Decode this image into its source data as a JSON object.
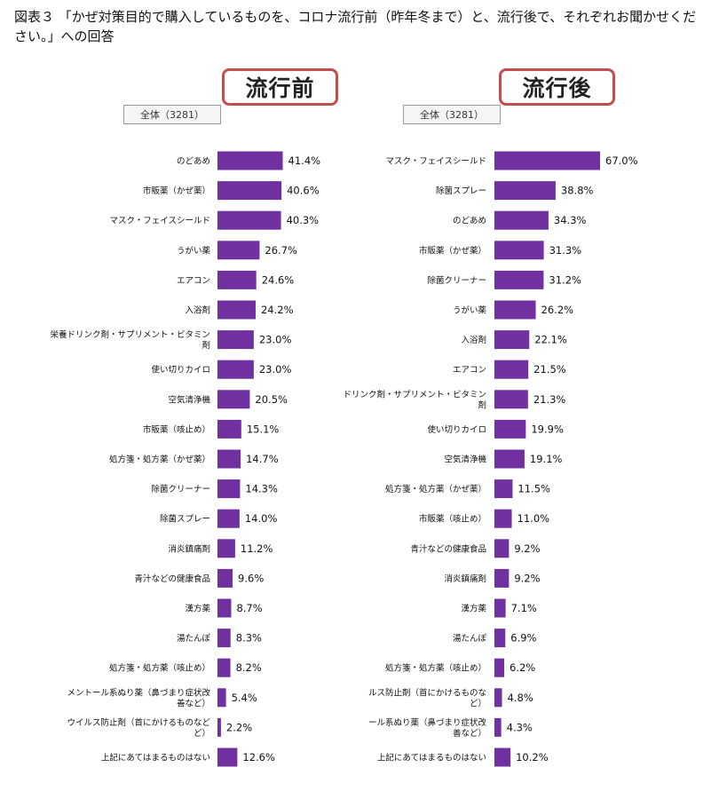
{
  "title": "図表３ 「かぜ対策目的で購入しているものを、コロナ流行前（昨年冬まで）と、流行後で、それぞれお聞かせください。」への回答",
  "colors": {
    "bar": "#7030a0",
    "header_border": "#c0504d",
    "value_text": "#111111",
    "label_text": "#111111"
  },
  "chart_data": [
    {
      "type": "bar",
      "orientation": "horizontal",
      "panel_title": "流行前",
      "sample_label": "全体（3281）",
      "unit": "%",
      "xlim": [
        0,
        67
      ],
      "grid": false,
      "categories": [
        "のどあめ",
        "市販薬（かぜ薬）",
        "マスク・フェイスシールド",
        "うがい薬",
        "エアコン",
        "入浴剤",
        "栄養ドリンク剤・サプリメント・ビタミン剤",
        "使い切りカイロ",
        "空気清浄機",
        "市販薬（咳止め）",
        "処方箋・処方薬（かぜ薬）",
        "除菌クリーナー",
        "除菌スプレー",
        "消炎鎮痛剤",
        "青汁などの健康食品",
        "漢方薬",
        "湯たんぽ",
        "処方箋・処方薬（咳止め）",
        "メントール系ぬり薬（鼻づまり症状改善など）",
        "ウイルス防止剤（首にかけるものなど）",
        "上記にあてはまるものはない"
      ],
      "label_lines": [
        [
          "のどあめ"
        ],
        [
          "市販薬（かぜ薬）"
        ],
        [
          "マスク・フェイスシールド"
        ],
        [
          "うがい薬"
        ],
        [
          "エアコン"
        ],
        [
          "入浴剤"
        ],
        [
          "栄養ドリンク剤・サプリメント・ビタミン",
          "剤"
        ],
        [
          "使い切りカイロ"
        ],
        [
          "空気清浄機"
        ],
        [
          "市販薬（咳止め）"
        ],
        [
          "処方箋・処方薬（かぜ薬）"
        ],
        [
          "除菌クリーナー"
        ],
        [
          "除菌スプレー"
        ],
        [
          "消炎鎮痛剤"
        ],
        [
          "青汁などの健康食品"
        ],
        [
          "漢方薬"
        ],
        [
          "湯たんぽ"
        ],
        [
          "処方箋・処方薬（咳止め）"
        ],
        [
          "メントール系ぬり薬（鼻づまり症状改",
          "善など）"
        ],
        [
          "ウイルス防止剤（首にかけるものなど",
          "ど）"
        ],
        [
          "上記にあてはまるものはない"
        ]
      ],
      "values": [
        41.4,
        40.6,
        40.3,
        26.7,
        24.6,
        24.2,
        23.0,
        23.0,
        20.5,
        15.1,
        14.7,
        14.3,
        14.0,
        11.2,
        9.6,
        8.7,
        8.3,
        8.2,
        5.4,
        2.2,
        12.6
      ],
      "value_labels": [
        "41.4%",
        "40.6%",
        "40.3%",
        "26.7%",
        "24.6%",
        "24.2%",
        "23.0%",
        "23.0%",
        "20.5%",
        "15.1%",
        "14.7%",
        "14.3%",
        "14.0%",
        "11.2%",
        "9.6%",
        "8.7%",
        "8.3%",
        "8.2%",
        "5.4%",
        "2.2%",
        "12.6%"
      ]
    },
    {
      "type": "bar",
      "orientation": "horizontal",
      "panel_title": "流行後",
      "sample_label": "全体（3281）",
      "unit": "%",
      "xlim": [
        0,
        67
      ],
      "grid": false,
      "categories": [
        "マスク・フェイスシールド",
        "除菌スプレー",
        "のどあめ",
        "市販薬（かぜ薬）",
        "除菌クリーナー",
        "うがい薬",
        "入浴剤",
        "エアコン",
        "ドリンク剤・サプリメント・ビタミン剤",
        "使い切りカイロ",
        "空気清浄機",
        "処方箋・処方薬（かぜ薬）",
        "市販薬（咳止め）",
        "青汁などの健康食品",
        "消炎鎮痛剤",
        "漢方薬",
        "湯たんぽ",
        "処方箋・処方薬（咳止め）",
        "ルス防止剤（首にかけるものなど）",
        "ール系ぬり薬（鼻づまり症状改善など）",
        "上記にあてはまるものはない"
      ],
      "label_lines": [
        [
          "マスク・フェイスシールド"
        ],
        [
          "除菌スプレー"
        ],
        [
          "のどあめ"
        ],
        [
          "市販薬（かぜ薬）"
        ],
        [
          "除菌クリーナー"
        ],
        [
          "うがい薬"
        ],
        [
          "入浴剤"
        ],
        [
          "エアコン"
        ],
        [
          "ドリンク剤・サプリメント・ビタミン",
          "剤"
        ],
        [
          "使い切りカイロ"
        ],
        [
          "空気清浄機"
        ],
        [
          "処方箋・処方薬（かぜ薬）"
        ],
        [
          "市販薬（咳止め）"
        ],
        [
          "青汁などの健康食品"
        ],
        [
          "消炎鎮痛剤"
        ],
        [
          "漢方薬"
        ],
        [
          "湯たんぽ"
        ],
        [
          "処方箋・処方薬（咳止め）"
        ],
        [
          "ルス防止剤（首にかけるものな",
          "ど）"
        ],
        [
          "ール系ぬり薬（鼻づまり症状改",
          "善など）"
        ],
        [
          "上記にあてはまるものはない"
        ]
      ],
      "values": [
        67.0,
        38.8,
        34.3,
        31.3,
        31.2,
        26.2,
        22.1,
        21.5,
        21.3,
        19.9,
        19.1,
        11.5,
        11.0,
        9.2,
        9.2,
        7.1,
        6.9,
        6.2,
        4.8,
        4.3,
        10.2
      ],
      "value_labels": [
        "67.0%",
        "38.8%",
        "34.3%",
        "31.3%",
        "31.2%",
        "26.2%",
        "22.1%",
        "21.5%",
        "21.3%",
        "19.9%",
        "19.1%",
        "11.5%",
        "11.0%",
        "9.2%",
        "9.2%",
        "7.1%",
        "6.9%",
        "6.2%",
        "4.8%",
        "4.3%",
        "10.2%"
      ]
    }
  ]
}
